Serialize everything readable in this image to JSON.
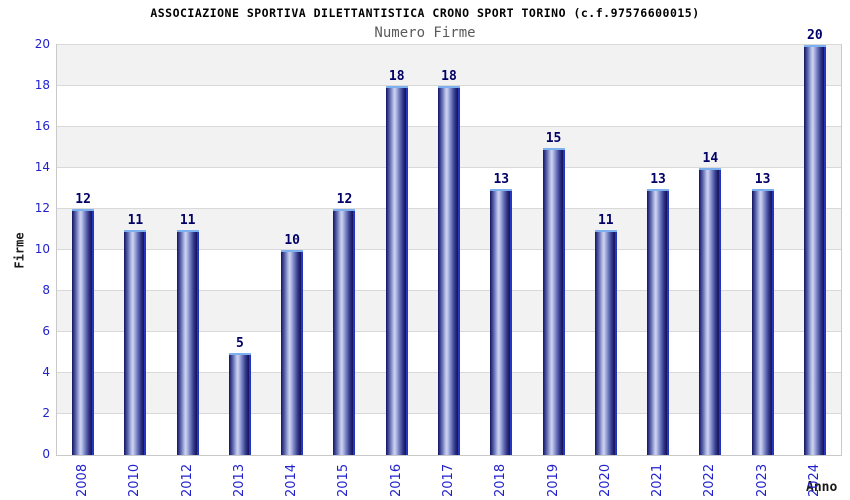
{
  "chart_data": {
    "type": "bar",
    "title": "ASSOCIAZIONE SPORTIVA DILETTANTISTICA CRONO SPORT TORINO (c.f.97576600015)",
    "subtitle": "Numero Firme",
    "xlabel": "Anno",
    "ylabel": "Firme",
    "categories": [
      "2008",
      "2010",
      "2012",
      "2013",
      "2014",
      "2015",
      "2016",
      "2017",
      "2018",
      "2019",
      "2020",
      "2021",
      "2022",
      "2023",
      "2024"
    ],
    "values": [
      12,
      11,
      11,
      5,
      10,
      12,
      18,
      18,
      13,
      15,
      11,
      13,
      14,
      13,
      20
    ],
    "ylim": [
      0,
      20
    ],
    "yticks": [
      0,
      2,
      4,
      6,
      8,
      10,
      12,
      14,
      16,
      18,
      20
    ],
    "grid": "horizontal",
    "bands": "alternating 2-unit gray/white, gray at 18-20",
    "legend_position": "none",
    "value_labels": "above bars",
    "colors": {
      "accent_blue": "#2222cc",
      "value_label_navy": "#000066",
      "bar_dark": "#1c1c66",
      "bar_light": "#cdd3ef",
      "bar_edge_blue": "#2e3fd8",
      "bar_cap_lightblue": "#7cb0ef",
      "band_gray": "#f2f2f2",
      "gridline": "#d9d9d9",
      "plot_border": "#c9c9c9",
      "subtitle_gray": "#5a5a5a",
      "background": "#ffffff"
    }
  }
}
